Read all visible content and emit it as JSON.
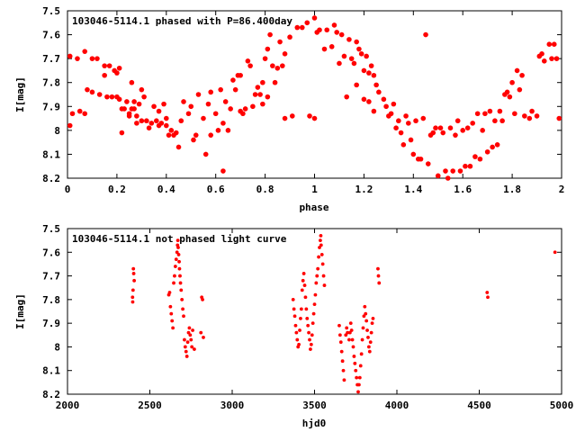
{
  "chart_data": [
    {
      "type": "scatter",
      "title": "103046-5114.1 phased with P=86.400day",
      "xlabel": "phase",
      "ylabel": "I[mag]",
      "xlim": [
        0,
        2
      ],
      "ylim": [
        8.2,
        7.5
      ],
      "y_inverted": true,
      "grid": false,
      "legend": "none",
      "marker_color": "#ff0000",
      "x_ticks": [
        "0",
        "0.2",
        "0.4",
        "0.6",
        "0.8",
        "1",
        "1.2",
        "1.4",
        "1.6",
        "1.8",
        "2"
      ],
      "y_ticks": [
        "7.5",
        "7.6",
        "7.7",
        "7.8",
        "7.9",
        "8",
        "8.1",
        "8.2"
      ],
      "points": [
        [
          0.01,
          7.69
        ],
        [
          0.01,
          7.98
        ],
        [
          0.02,
          7.93
        ],
        [
          0.04,
          7.7
        ],
        [
          0.05,
          7.92
        ],
        [
          0.07,
          7.67
        ],
        [
          0.07,
          7.93
        ],
        [
          0.08,
          7.83
        ],
        [
          0.1,
          7.84
        ],
        [
          0.1,
          7.7
        ],
        [
          0.12,
          7.7
        ],
        [
          0.13,
          7.85
        ],
        [
          0.15,
          7.77
        ],
        [
          0.15,
          7.73
        ],
        [
          0.16,
          7.86
        ],
        [
          0.17,
          7.73
        ],
        [
          0.18,
          7.86
        ],
        [
          0.19,
          7.75
        ],
        [
          0.2,
          7.86
        ],
        [
          0.2,
          7.76
        ],
        [
          0.21,
          7.87
        ],
        [
          0.21,
          7.74
        ],
        [
          0.22,
          7.91
        ],
        [
          0.22,
          8.01
        ],
        [
          0.23,
          7.91
        ],
        [
          0.24,
          7.88
        ],
        [
          0.25,
          7.93
        ],
        [
          0.25,
          7.94
        ],
        [
          0.26,
          7.8
        ],
        [
          0.26,
          7.91
        ],
        [
          0.27,
          7.88
        ],
        [
          0.27,
          7.91
        ],
        [
          0.28,
          7.94
        ],
        [
          0.28,
          7.97
        ],
        [
          0.29,
          7.89
        ],
        [
          0.3,
          7.83
        ],
        [
          0.3,
          7.96
        ],
        [
          0.31,
          7.86
        ],
        [
          0.32,
          7.96
        ],
        [
          0.33,
          7.99
        ],
        [
          0.34,
          7.97
        ],
        [
          0.35,
          7.9
        ],
        [
          0.36,
          7.96
        ],
        [
          0.37,
          7.98
        ],
        [
          0.37,
          7.92
        ],
        [
          0.38,
          7.97
        ],
        [
          0.39,
          7.89
        ],
        [
          0.4,
          7.98
        ],
        [
          0.4,
          7.95
        ],
        [
          0.41,
          8.02
        ],
        [
          0.42,
          8.0
        ],
        [
          0.43,
          8.02
        ],
        [
          0.44,
          8.01
        ],
        [
          0.45,
          8.07
        ],
        [
          0.46,
          7.96
        ],
        [
          0.47,
          7.88
        ],
        [
          0.49,
          7.93
        ],
        [
          0.5,
          7.9
        ],
        [
          0.51,
          8.04
        ],
        [
          0.52,
          8.02
        ],
        [
          0.53,
          7.85
        ],
        [
          0.55,
          7.95
        ],
        [
          0.56,
          8.1
        ],
        [
          0.57,
          7.89
        ],
        [
          0.58,
          7.84
        ],
        [
          0.58,
          8.02
        ],
        [
          0.6,
          7.93
        ],
        [
          0.61,
          8.0
        ],
        [
          0.62,
          7.83
        ],
        [
          0.63,
          7.97
        ],
        [
          0.63,
          8.17
        ],
        [
          0.64,
          7.88
        ],
        [
          0.65,
          8.0
        ],
        [
          0.66,
          7.91
        ],
        [
          0.67,
          7.79
        ],
        [
          0.68,
          7.83
        ],
        [
          0.69,
          7.77
        ],
        [
          0.7,
          7.77
        ],
        [
          0.7,
          7.92
        ],
        [
          0.71,
          7.93
        ],
        [
          0.72,
          7.91
        ],
        [
          0.73,
          7.71
        ],
        [
          0.74,
          7.73
        ],
        [
          0.75,
          7.9
        ],
        [
          0.76,
          7.85
        ],
        [
          0.77,
          7.82
        ],
        [
          0.78,
          7.85
        ],
        [
          0.79,
          7.8
        ],
        [
          0.79,
          7.89
        ],
        [
          0.8,
          7.7
        ],
        [
          0.81,
          7.66
        ],
        [
          0.81,
          7.86
        ],
        [
          0.82,
          7.6
        ],
        [
          0.83,
          7.73
        ],
        [
          0.84,
          7.8
        ],
        [
          0.85,
          7.74
        ],
        [
          0.86,
          7.63
        ],
        [
          0.87,
          7.73
        ],
        [
          0.88,
          7.68
        ],
        [
          0.88,
          7.95
        ],
        [
          0.9,
          7.61
        ],
        [
          0.91,
          7.94
        ],
        [
          0.93,
          7.57
        ],
        [
          0.95,
          7.57
        ],
        [
          0.97,
          7.55
        ],
        [
          0.98,
          7.94
        ],
        [
          1.0,
          7.53
        ],
        [
          1.0,
          7.95
        ],
        [
          1.01,
          7.59
        ],
        [
          1.02,
          7.58
        ],
        [
          1.04,
          7.66
        ],
        [
          1.05,
          7.58
        ],
        [
          1.07,
          7.65
        ],
        [
          1.08,
          7.56
        ],
        [
          1.09,
          7.59
        ],
        [
          1.1,
          7.72
        ],
        [
          1.11,
          7.6
        ],
        [
          1.12,
          7.69
        ],
        [
          1.13,
          7.86
        ],
        [
          1.14,
          7.62
        ],
        [
          1.15,
          7.7
        ],
        [
          1.16,
          7.72
        ],
        [
          1.17,
          7.81
        ],
        [
          1.17,
          7.63
        ],
        [
          1.18,
          7.66
        ],
        [
          1.19,
          7.68
        ],
        [
          1.2,
          7.75
        ],
        [
          1.2,
          7.87
        ],
        [
          1.21,
          7.69
        ],
        [
          1.22,
          7.76
        ],
        [
          1.22,
          7.88
        ],
        [
          1.23,
          7.73
        ],
        [
          1.24,
          7.77
        ],
        [
          1.24,
          7.92
        ],
        [
          1.25,
          7.81
        ],
        [
          1.26,
          7.84
        ],
        [
          1.28,
          7.87
        ],
        [
          1.29,
          7.9
        ],
        [
          1.3,
          7.94
        ],
        [
          1.31,
          7.93
        ],
        [
          1.32,
          7.89
        ],
        [
          1.33,
          7.99
        ],
        [
          1.34,
          7.96
        ],
        [
          1.35,
          8.01
        ],
        [
          1.36,
          8.06
        ],
        [
          1.37,
          7.94
        ],
        [
          1.38,
          7.97
        ],
        [
          1.39,
          8.04
        ],
        [
          1.4,
          8.1
        ],
        [
          1.41,
          7.96
        ],
        [
          1.42,
          8.12
        ],
        [
          1.43,
          8.12
        ],
        [
          1.44,
          7.95
        ],
        [
          1.45,
          7.6
        ],
        [
          1.46,
          8.14
        ],
        [
          1.47,
          8.02
        ],
        [
          1.48,
          8.01
        ],
        [
          1.49,
          7.99
        ],
        [
          1.5,
          8.19
        ],
        [
          1.51,
          7.99
        ],
        [
          1.52,
          8.01
        ],
        [
          1.53,
          8.17
        ],
        [
          1.54,
          8.2
        ],
        [
          1.55,
          7.99
        ],
        [
          1.56,
          8.17
        ],
        [
          1.57,
          8.02
        ],
        [
          1.58,
          7.96
        ],
        [
          1.59,
          8.17
        ],
        [
          1.6,
          8.0
        ],
        [
          1.61,
          8.15
        ],
        [
          1.62,
          7.99
        ],
        [
          1.63,
          8.15
        ],
        [
          1.64,
          7.97
        ],
        [
          1.65,
          8.11
        ],
        [
          1.66,
          7.93
        ],
        [
          1.67,
          8.12
        ],
        [
          1.68,
          8.0
        ],
        [
          1.69,
          7.93
        ],
        [
          1.7,
          8.09
        ],
        [
          1.71,
          7.92
        ],
        [
          1.72,
          8.07
        ],
        [
          1.73,
          7.96
        ],
        [
          1.74,
          8.06
        ],
        [
          1.75,
          7.92
        ],
        [
          1.76,
          7.96
        ],
        [
          1.77,
          7.85
        ],
        [
          1.78,
          7.84
        ],
        [
          1.79,
          7.86
        ],
        [
          1.8,
          7.8
        ],
        [
          1.81,
          7.93
        ],
        [
          1.82,
          7.75
        ],
        [
          1.83,
          7.83
        ],
        [
          1.84,
          7.77
        ],
        [
          1.85,
          7.94
        ],
        [
          1.87,
          7.95
        ],
        [
          1.88,
          7.92
        ],
        [
          1.9,
          7.94
        ],
        [
          1.91,
          7.69
        ],
        [
          1.92,
          7.68
        ],
        [
          1.93,
          7.71
        ],
        [
          1.95,
          7.64
        ],
        [
          1.96,
          7.7
        ],
        [
          1.97,
          7.64
        ],
        [
          1.98,
          7.7
        ],
        [
          1.99,
          7.95
        ]
      ]
    },
    {
      "type": "scatter",
      "title": "103046-5114.1 not phased light curve",
      "xlabel": "hjd0",
      "ylabel": "I[mag]",
      "xlim": [
        2000,
        5000
      ],
      "ylim": [
        8.2,
        7.5
      ],
      "y_inverted": true,
      "grid": false,
      "legend": "none",
      "marker_color": "#ff0000",
      "x_ticks": [
        "2000",
        "2500",
        "3000",
        "3500",
        "4000",
        "4500",
        "5000"
      ],
      "y_ticks": [
        "7.5",
        "7.6",
        "7.7",
        "7.8",
        "7.9",
        "8",
        "8.1",
        "8.2"
      ],
      "points": [
        [
          2395,
          7.79
        ],
        [
          2396,
          7.81
        ],
        [
          2400,
          7.67
        ],
        [
          2402,
          7.69
        ],
        [
          2405,
          7.72
        ],
        [
          2398,
          7.76
        ],
        [
          2615,
          7.78
        ],
        [
          2620,
          7.77
        ],
        [
          2625,
          7.83
        ],
        [
          2630,
          7.86
        ],
        [
          2635,
          7.89
        ],
        [
          2640,
          7.92
        ],
        [
          2645,
          7.73
        ],
        [
          2650,
          7.7
        ],
        [
          2655,
          7.66
        ],
        [
          2660,
          7.63
        ],
        [
          2665,
          7.6
        ],
        [
          2668,
          7.57
        ],
        [
          2670,
          7.55
        ],
        [
          2672,
          7.58
        ],
        [
          2675,
          7.61
        ],
        [
          2678,
          7.64
        ],
        [
          2680,
          7.67
        ],
        [
          2683,
          7.7
        ],
        [
          2686,
          7.73
        ],
        [
          2690,
          7.76
        ],
        [
          2695,
          7.8
        ],
        [
          2700,
          7.84
        ],
        [
          2705,
          7.87
        ],
        [
          2710,
          7.97
        ],
        [
          2715,
          8.0
        ],
        [
          2720,
          8.02
        ],
        [
          2725,
          8.04
        ],
        [
          2730,
          7.98
        ],
        [
          2735,
          7.94
        ],
        [
          2740,
          7.92
        ],
        [
          2745,
          7.95
        ],
        [
          2750,
          7.97
        ],
        [
          2755,
          8.0
        ],
        [
          2760,
          7.93
        ],
        [
          2770,
          8.01
        ],
        [
          2810,
          7.94
        ],
        [
          2815,
          7.79
        ],
        [
          2820,
          7.8
        ],
        [
          2825,
          7.96
        ],
        [
          3370,
          7.8
        ],
        [
          3375,
          7.84
        ],
        [
          3380,
          7.87
        ],
        [
          3385,
          7.91
        ],
        [
          3390,
          7.94
        ],
        [
          3395,
          7.97
        ],
        [
          3400,
          8.0
        ],
        [
          3405,
          7.99
        ],
        [
          3410,
          7.93
        ],
        [
          3415,
          7.88
        ],
        [
          3420,
          7.84
        ],
        [
          3425,
          7.76
        ],
        [
          3430,
          7.72
        ],
        [
          3435,
          7.69
        ],
        [
          3440,
          7.74
        ],
        [
          3445,
          7.79
        ],
        [
          3450,
          7.84
        ],
        [
          3455,
          7.88
        ],
        [
          3460,
          7.91
        ],
        [
          3465,
          7.94
        ],
        [
          3470,
          7.97
        ],
        [
          3475,
          8.01
        ],
        [
          3480,
          7.99
        ],
        [
          3485,
          7.95
        ],
        [
          3490,
          7.9
        ],
        [
          3495,
          7.86
        ],
        [
          3500,
          7.82
        ],
        [
          3505,
          7.78
        ],
        [
          3510,
          7.73
        ],
        [
          3515,
          7.7
        ],
        [
          3520,
          7.67
        ],
        [
          3525,
          7.62
        ],
        [
          3530,
          7.58
        ],
        [
          3535,
          7.55
        ],
        [
          3538,
          7.53
        ],
        [
          3540,
          7.57
        ],
        [
          3545,
          7.61
        ],
        [
          3550,
          7.65
        ],
        [
          3555,
          7.7
        ],
        [
          3560,
          7.74
        ],
        [
          3650,
          7.91
        ],
        [
          3655,
          7.95
        ],
        [
          3660,
          7.98
        ],
        [
          3665,
          8.02
        ],
        [
          3670,
          8.06
        ],
        [
          3675,
          8.1
        ],
        [
          3680,
          8.14
        ],
        [
          3690,
          7.95
        ],
        [
          3695,
          7.92
        ],
        [
          3700,
          7.94
        ],
        [
          3710,
          7.97
        ],
        [
          3715,
          7.94
        ],
        [
          3720,
          7.9
        ],
        [
          3725,
          7.93
        ],
        [
          3730,
          7.97
        ],
        [
          3735,
          8.0
        ],
        [
          3740,
          8.04
        ],
        [
          3745,
          8.07
        ],
        [
          3750,
          8.1
        ],
        [
          3755,
          8.13
        ],
        [
          3760,
          8.16
        ],
        [
          3765,
          8.19
        ],
        [
          3770,
          8.16
        ],
        [
          3775,
          8.13
        ],
        [
          3780,
          8.08
        ],
        [
          3785,
          8.03
        ],
        [
          3790,
          7.97
        ],
        [
          3795,
          7.92
        ],
        [
          3800,
          7.87
        ],
        [
          3805,
          7.83
        ],
        [
          3810,
          7.86
        ],
        [
          3815,
          7.89
        ],
        [
          3820,
          7.93
        ],
        [
          3825,
          7.96
        ],
        [
          3830,
          8.0
        ],
        [
          3835,
          8.02
        ],
        [
          3840,
          7.98
        ],
        [
          3845,
          7.94
        ],
        [
          3850,
          7.9
        ],
        [
          3855,
          7.88
        ],
        [
          3885,
          7.67
        ],
        [
          3888,
          7.7
        ],
        [
          3892,
          7.73
        ],
        [
          4548,
          7.77
        ],
        [
          4552,
          7.79
        ],
        [
          4960,
          7.6
        ]
      ]
    }
  ]
}
